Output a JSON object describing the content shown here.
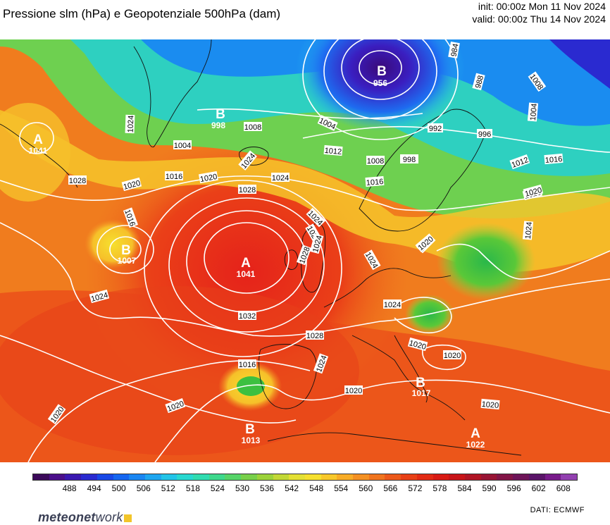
{
  "header": {
    "title": "Pressione slm (hPa) e Geopotenziale 500hPa (dam)",
    "init": "init: 00:00z Mon 11 Nov 2024",
    "valid": "valid: 00:00z Thu 14 Nov 2024"
  },
  "map": {
    "isobar_labels": [
      "984",
      "988",
      "1008",
      "1004",
      "992",
      "996",
      "1004",
      "1008",
      "1012",
      "1016",
      "1020",
      "1024",
      "1028",
      "1016",
      "1020",
      "1024",
      "1012",
      "1008",
      "1004",
      "998",
      "1024",
      "1004",
      "1024",
      "1016",
      "1020",
      "1024",
      "1028",
      "1032",
      "1024",
      "1028",
      "1016",
      "1024",
      "1020",
      "1024",
      "1020",
      "1020",
      "1028",
      "1024",
      "1016",
      "1020",
      "1020",
      "1020",
      "1020",
      "1020",
      "1028",
      "1024"
    ],
    "centers": [
      {
        "letter": "B",
        "value": "956"
      },
      {
        "letter": "B",
        "value": "998"
      },
      {
        "letter": "A",
        "value": "1041"
      },
      {
        "letter": "B",
        "value": "1007"
      },
      {
        "letter": "A",
        "value": "1041"
      },
      {
        "letter": "B",
        "value": "1017"
      },
      {
        "letter": "B",
        "value": "1013"
      },
      {
        "letter": "A",
        "value": "1022"
      }
    ]
  },
  "colorbar": {
    "colors": [
      "#3c0a5a",
      "#4b0f8a",
      "#3a18b0",
      "#2a2ad0",
      "#1848e6",
      "#1566f0",
      "#1a86f2",
      "#1ea6f0",
      "#22c4e8",
      "#28d8d0",
      "#30dcb0",
      "#3ed88c",
      "#56d468",
      "#78d04a",
      "#9cd23a",
      "#c2d836",
      "#e4e034",
      "#f6e02e",
      "#f8c82a",
      "#f8ac26",
      "#f49022",
      "#f0741e",
      "#ec581a",
      "#e84016",
      "#e22a14",
      "#d81a14",
      "#c81418",
      "#b01424",
      "#981434",
      "#821446",
      "#6e1458",
      "#5a1468",
      "#781a8a",
      "#9240b0"
    ],
    "labels": [
      "488",
      "494",
      "500",
      "506",
      "512",
      "518",
      "524",
      "530",
      "536",
      "542",
      "548",
      "554",
      "560",
      "566",
      "572",
      "578",
      "584",
      "590",
      "596",
      "602",
      "608"
    ]
  },
  "footer": {
    "logo_bold": "meteonet",
    "logo_tail": "work",
    "source": "DATI:  ECMWF"
  }
}
